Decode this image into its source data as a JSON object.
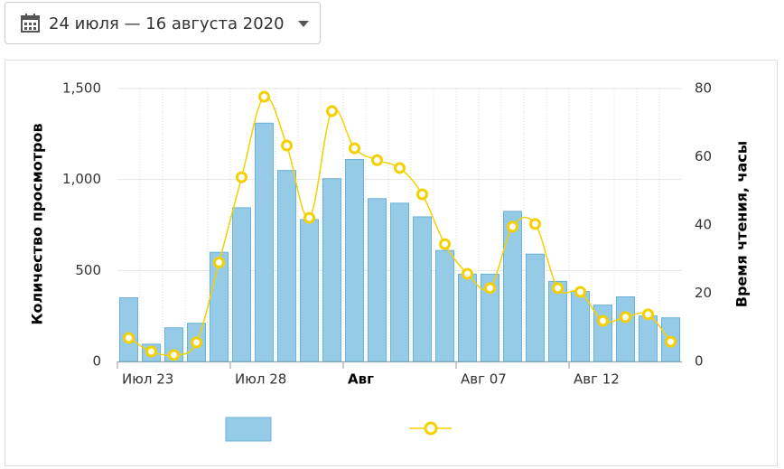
{
  "header": {
    "date_range": "24 июля — 16 августа 2020"
  },
  "chart_data": {
    "type": "bar-line",
    "ylabel": "Количество просмотров",
    "y2label": "Время чтения, часы",
    "xlim": [
      0,
      25
    ],
    "xticks": [
      {
        "value": 0,
        "label": "Июл 23"
      },
      {
        "value": 5,
        "label": "Июл 28"
      },
      {
        "value": 10,
        "label": "Авг",
        "bold": true
      },
      {
        "value": 15,
        "label": "Авг 07"
      },
      {
        "value": 20,
        "label": "Авг 12"
      }
    ],
    "ylim": [
      0,
      1500
    ],
    "yticks": [
      0,
      {
        "value": 500,
        "label": "500"
      },
      {
        "value": 1000,
        "label": "1,000"
      },
      {
        "value": 1500,
        "label": "1,500"
      }
    ],
    "y2lim": [
      0,
      80
    ],
    "y2ticks": [
      0,
      20,
      40,
      60,
      80
    ],
    "grid": true,
    "series": [
      {
        "type": "bar",
        "color": "#95cbe6",
        "values": [
          350,
          95,
          185,
          210,
          600,
          845,
          1310,
          1050,
          780,
          1005,
          1110,
          895,
          870,
          795,
          610,
          480,
          480,
          825,
          590,
          440,
          385,
          310,
          355,
          250,
          240
        ]
      },
      {
        "type": "line",
        "axis": "y2",
        "color": "#f5d000",
        "values": [
          6.9,
          2.9,
          1.9,
          5.6,
          29,
          54,
          77.6,
          63.3,
          42.1,
          73.4,
          62.5,
          59,
          56.7,
          49,
          34.4,
          25.7,
          21.5,
          39.5,
          40.3,
          21.5,
          20.4,
          11.9,
          13,
          13.8,
          5.8
        ]
      }
    ]
  }
}
